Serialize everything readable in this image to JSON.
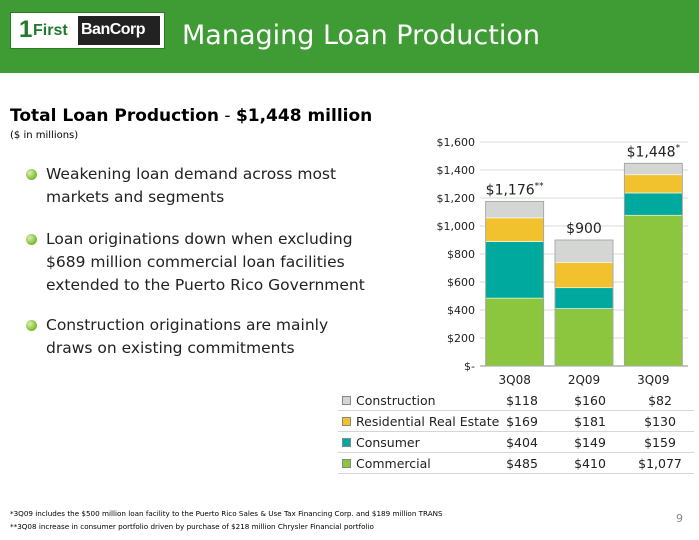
{
  "header": {
    "logo_one": "1",
    "logo_first": "First",
    "logo_bancorp": "BanCorp",
    "title": "Managing Loan Production"
  },
  "subtitle": {
    "bold": "Total Loan Production",
    "sep": " - ",
    "amount": "$1,448 million"
  },
  "units": "($ in millions)",
  "bullets": [
    "Weakening loan demand across most markets and segments",
    "Loan originations down when excluding $689 million commercial loan facilities extended to the Puerto Rico Government",
    "Construction originations are mainly draws on existing commitments"
  ],
  "chart_data": {
    "type": "bar",
    "stacked": true,
    "categories": [
      "3Q08",
      "2Q09",
      "3Q09"
    ],
    "y_ticks": [
      "$-",
      "$200",
      "$400",
      "$600",
      "$800",
      "$1,000",
      "$1,200",
      "$1,400",
      "$1,600"
    ],
    "ylim": [
      0,
      1600
    ],
    "series": [
      {
        "name": "Commercial",
        "color": "#8cc63f",
        "values": [
          485,
          410,
          1077
        ],
        "labels": [
          "$485",
          "$410",
          "$1,077"
        ]
      },
      {
        "name": "Consumer",
        "color": "#00a99d",
        "values": [
          404,
          149,
          159
        ],
        "labels": [
          "$404",
          "$149",
          "$159"
        ]
      },
      {
        "name": "Residential Real Estate",
        "color": "#f2c12e",
        "values": [
          169,
          181,
          130
        ],
        "labels": [
          "$169",
          "$181",
          "$130"
        ]
      },
      {
        "name": "Construction",
        "color": "#d3d6d3",
        "values": [
          118,
          160,
          82
        ],
        "labels": [
          "$118",
          "$160",
          "$82"
        ]
      }
    ],
    "totals": [
      {
        "label": "$1,176",
        "mark": "**"
      },
      {
        "label": "$900",
        "mark": ""
      },
      {
        "label": "$1,448",
        "mark": "*"
      }
    ]
  },
  "footnotes": [
    "*3Q09 includes the $500 million loan facility to the Puerto Rico Sales & Use Tax Financing Corp. and $189 million TRANS",
    "**3Q08 increase in consumer portfolio driven by purchase of $218 million Chrysler Financial portfolio"
  ],
  "page_number": "9"
}
